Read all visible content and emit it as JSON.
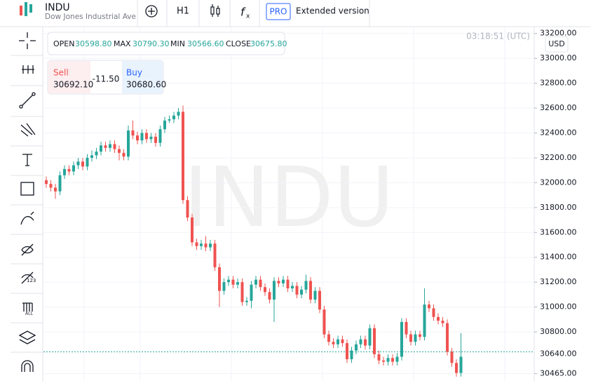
{
  "header": {
    "symbol": "INDU",
    "name": "Dow Jones Industrial Ave",
    "interval": "H1",
    "pro": "PRO",
    "extended": "Extended version"
  },
  "ohlc": {
    "open_label": "OPEN",
    "open": "30598.80",
    "max_label": "MAX",
    "max": "30790.30",
    "min_label": "MIN",
    "min": "30566.60",
    "close_label": "CLOSE",
    "close": "30675.80"
  },
  "trade": {
    "sell_label": "Sell",
    "sell": "30692.10",
    "spread": "-11.50",
    "buy_label": "Buy",
    "buy": "30680.60"
  },
  "time": "03:18:51 (UTC)",
  "currency": "USD",
  "watermark": "INDU",
  "chart_data": {
    "type": "candlestick",
    "open": [
      32020,
      31990,
      31960,
      31930,
      32060,
      32110,
      32090,
      32140,
      32170,
      32130,
      32200,
      32220,
      32250,
      32300,
      32280,
      32310,
      32270,
      32240,
      32210,
      32420,
      32380,
      32340,
      32400,
      32350,
      32370,
      32320,
      32430,
      32500,
      32510,
      32540,
      32570,
      31860,
      31720,
      31520,
      31490,
      31510,
      31480,
      31510,
      31320,
      31130,
      31200,
      31220,
      31180,
      31200,
      31040,
      31050,
      31180,
      31220,
      31160,
      31120,
      31060,
      31210,
      31190,
      31220,
      31150,
      31170,
      31100,
      31140,
      31210,
      31060,
      31130,
      30980,
      30780,
      30720,
      30700,
      30740,
      30710,
      30580,
      30650,
      30700,
      30740,
      30690,
      30830,
      30620,
      30570,
      30560,
      30590,
      30560,
      30600,
      30880,
      30780,
      30720,
      30780,
      30760,
      31020,
      30990,
      30920,
      30890,
      30870,
      30640,
      30550,
      30470
    ],
    "high": [
      32050,
      32020,
      31990,
      32090,
      32140,
      32140,
      32170,
      32200,
      32200,
      32230,
      32260,
      32280,
      32330,
      32330,
      32340,
      32340,
      32300,
      32270,
      32460,
      32500,
      32410,
      32430,
      32430,
      32400,
      32400,
      32460,
      32530,
      32540,
      32570,
      32600,
      32620,
      31890,
      31750,
      31550,
      31540,
      31570,
      31540,
      31540,
      31350,
      31230,
      31250,
      31250,
      31230,
      31230,
      31080,
      31210,
      31250,
      31250,
      31190,
      31150,
      31240,
      31240,
      31250,
      31250,
      31200,
      31200,
      31170,
      31260,
      31240,
      31160,
      31160,
      31010,
      30810,
      30750,
      30770,
      30770,
      30740,
      30680,
      30730,
      30770,
      30770,
      30860,
      30860,
      30650,
      30600,
      30620,
      30620,
      30630,
      30910,
      30910,
      30810,
      30810,
      30810,
      31150,
      31050,
      31020,
      30950,
      30920,
      30900,
      30670,
      30580,
      30790
    ],
    "low": [
      31960,
      31930,
      31870,
      31900,
      32030,
      32060,
      32060,
      32110,
      32100,
      32100,
      32170,
      32190,
      32220,
      32250,
      32250,
      32240,
      32180,
      32180,
      32180,
      32350,
      32310,
      32310,
      32320,
      32320,
      32290,
      32290,
      32400,
      32480,
      32480,
      32510,
      31830,
      31690,
      31490,
      31460,
      31460,
      31450,
      31450,
      31290,
      31000,
      31100,
      31170,
      31150,
      31150,
      31010,
      31010,
      30990,
      31150,
      31130,
      31090,
      31030,
      30880,
      31160,
      31160,
      31120,
      31120,
      31070,
      31070,
      31110,
      31030,
      31030,
      30950,
      30750,
      30690,
      30670,
      30670,
      30680,
      30550,
      30550,
      30620,
      30670,
      30660,
      30660,
      30590,
      30540,
      30530,
      30530,
      30530,
      30530,
      30570,
      30750,
      30690,
      30690,
      30730,
      30730,
      30960,
      30890,
      30860,
      30840,
      30610,
      30520,
      30440,
      30440
    ],
    "close": [
      31990,
      31960,
      31930,
      32060,
      32110,
      32090,
      32140,
      32170,
      32130,
      32200,
      32220,
      32250,
      32300,
      32280,
      32310,
      32270,
      32240,
      32210,
      32420,
      32380,
      32340,
      32400,
      32350,
      32370,
      32320,
      32430,
      32500,
      32510,
      32540,
      32570,
      31860,
      31720,
      31520,
      31490,
      31510,
      31480,
      31510,
      31320,
      31130,
      31200,
      31220,
      31180,
      31200,
      31040,
      31050,
      31180,
      31220,
      31160,
      31120,
      31060,
      31210,
      31190,
      31220,
      31150,
      31170,
      31100,
      31140,
      31210,
      31060,
      31130,
      30980,
      30780,
      30720,
      30700,
      30740,
      30710,
      30580,
      30650,
      30700,
      30740,
      30690,
      30830,
      30620,
      30570,
      30560,
      30590,
      30560,
      30600,
      30880,
      30780,
      30720,
      30780,
      30760,
      31020,
      30990,
      30920,
      30890,
      30870,
      30640,
      30550,
      30470,
      30600
    ],
    "ylim": [
      30405,
      33255
    ],
    "yticks": [
      {
        "value": 33200,
        "label": "33200.00"
      },
      {
        "value": 33000,
        "label": "33000.00"
      },
      {
        "value": 32800,
        "label": "32800.00"
      },
      {
        "value": 32600,
        "label": "32600.00"
      },
      {
        "value": 32400,
        "label": "32400.00"
      },
      {
        "value": 32200,
        "label": "32200.00"
      },
      {
        "value": 32000,
        "label": "32000.00"
      },
      {
        "value": 31800,
        "label": "31800.00"
      },
      {
        "value": 31600,
        "label": "31600.00"
      },
      {
        "value": 31400,
        "label": "31400.00"
      },
      {
        "value": 31200,
        "label": "31200.00"
      },
      {
        "value": 31000,
        "label": "31000.00"
      },
      {
        "value": 30800,
        "label": "30800.00"
      },
      {
        "value": 30465,
        "label": "30465.00"
      }
    ],
    "last_price": {
      "value": 30640,
      "label": "30640.00"
    },
    "up_color": "#26a69a",
    "down_color": "#ef5350",
    "grid": true
  }
}
